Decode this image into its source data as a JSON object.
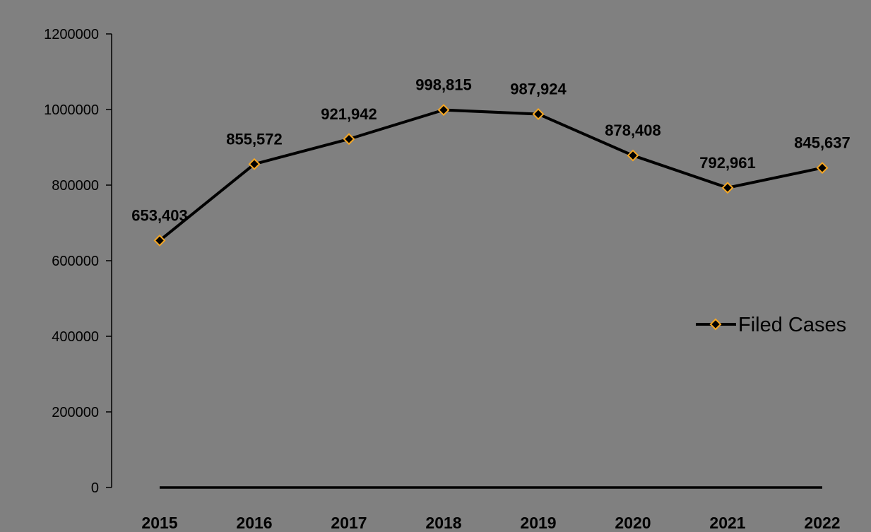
{
  "chart_data": {
    "type": "line",
    "categories": [
      "2015",
      "2016",
      "2017",
      "2018",
      "2019",
      "2020",
      "2021",
      "2022"
    ],
    "series": [
      {
        "name": "Filed Cases",
        "values": [
          653403,
          855572,
          921942,
          998815,
          987924,
          878408,
          792961,
          845637
        ],
        "data_labels": [
          "653,403",
          "855,572",
          "921,942",
          "998,815",
          "987,924",
          "878,408",
          "792,961",
          "845,637"
        ]
      }
    ],
    "y_ticks": [
      "0",
      "200000",
      "400000",
      "600000",
      "800000",
      "1000000",
      "1200000"
    ],
    "ylim": [
      0,
      1200000
    ],
    "grid": false,
    "legend": "right",
    "colors": {
      "background": "#808080",
      "line": "#000000",
      "marker_fill": "#000000",
      "marker_stroke": "#f5a623"
    }
  }
}
